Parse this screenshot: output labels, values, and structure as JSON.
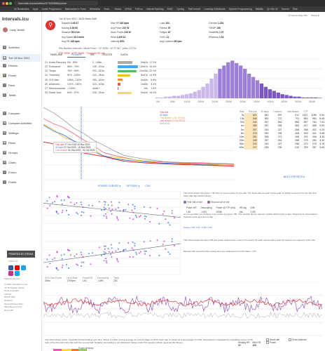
{
  "browser": {
    "url": "intervals.icu/activities/i17000896/power",
    "bookmarks": [
      "All Bookmarks",
      "Apps",
      "Guitar Progression",
      "Bikehackerz's Track",
      "Wheeloha",
      "Yeah...",
      "Strava",
      "VEMA",
      "Full Ice",
      "Internet Banking",
      "AMIC",
      "Cycling",
      "TeleConvert",
      "Learning Solidworks",
      "Speedo Programming",
      "Millibits",
      "Qu Wiz #2",
      "Garmin",
      "Ride"
    ]
  },
  "sidebar": {
    "logo": "Intervals.icu",
    "user": "Lady Jeckel",
    "items": [
      {
        "label": "Activities",
        "y": 48
      },
      {
        "label": "Tue 16 Nov 2021",
        "y": 60,
        "active": true
      },
      {
        "label": "Fitness",
        "y": 74
      },
      {
        "label": "Power",
        "y": 88
      },
      {
        "label": "Pace",
        "y": 102
      },
      {
        "label": "Totals",
        "y": 116
      },
      {
        "label": "Compare",
        "y": 142
      },
      {
        "label": "Compare Activities",
        "y": 156
      },
      {
        "label": "Settings",
        "y": 170
      },
      {
        "label": "Plans",
        "y": 184
      },
      {
        "label": "Groups",
        "y": 198
      },
      {
        "label": "Chats",
        "y": 212
      },
      {
        "label": "Forum",
        "y": 226
      },
      {
        "label": "Profile",
        "y": 240
      }
    ],
    "strava": "POWERED BY STRAVA",
    "social_label": "Follow Us",
    "footer": [
      "© 2024 Intervals.icu Ltd",
      "71-75 Shelton Street",
      "Covent Garden",
      "London",
      "WC2H 9JQ",
      "England",
      "Terms Privacy Help",
      "Ideas  Bugs  Forum",
      "Docs  API"
    ],
    "follow": "FastFitness.Tips"
  },
  "header": {
    "date": "Tue 16 Nov 2021 · 18:00 Mixed Zwift",
    "stats": [
      [
        "Elapsed",
        "1:40:27"
      ],
      [
        "Moving",
        "1:39:50"
      ],
      [
        "Distance",
        "50.9 km"
      ],
      [
        "Avg Speed",
        "30.2 km/h"
      ],
      [
        "Avg HR",
        "148 bpm"
      ],
      [
        "Max HR",
        "182 bpm"
      ],
      [
        "Avg Power",
        "227 W"
      ],
      [
        "Norm Power",
        "244 W"
      ],
      [
        "Work",
        "1,325 kJ"
      ],
      [
        "Intensity",
        "80%"
      ],
      [
        "Load",
        "104"
      ],
      [
        "Fitness",
        "76"
      ],
      [
        "Fatigue",
        "87"
      ],
      [
        "Form",
        "-11"
      ],
      [
        "Avg Cadence",
        "85 rpm"
      ],
      [
        "Calories",
        "1,210"
      ],
      [
        "TRIMP",
        "155"
      ],
      [
        "Variability",
        "1.07"
      ],
      [
        "Efficiency",
        "1.64"
      ]
    ],
    "chips": [
      "Ⓡ Garmin Edge 810",
      "Strava ★"
    ],
    "power_model": "Eliw Banister Intervals Critical Power · CP 250W · W' 22.3kJ · pMax 1077W",
    "ftp_line": "FTP 269W · eFTP 264W · Threshold HR 168"
  },
  "tabs": [
    "TIMELINE",
    "POWER",
    "HR",
    "ROUTE",
    "DATA"
  ],
  "zones": [
    [
      "Z1",
      "Active Recovery",
      "0% - 55%",
      "0 - 148w",
      "9m42s",
      "17.2%",
      "#aaa"
    ],
    [
      "Z2",
      "Endurance",
      "56% - 75%",
      "149 - 201w",
      "13m47s",
      "24.5%",
      "#3fa9f5"
    ],
    [
      "Z3",
      "Tempo",
      "76% - 90%",
      "202 - 242w",
      "12m24s",
      "22.1%",
      "#5bb85b"
    ],
    [
      "Z4",
      "Threshold",
      "91% - 105%",
      "243 - 282w",
      "8m21s",
      "14.9%",
      "#f2c40f"
    ],
    [
      "Z5",
      "VO2 Max",
      "106% - 120%",
      "283 - 322w",
      "3m15s",
      "5.8%",
      "#f08a24"
    ],
    [
      "Z6",
      "Anaerobic",
      "121% - 150%",
      "323 - 403w",
      "1m45s",
      "3.1%",
      "#e05a4f"
    ],
    [
      "Z7",
      "Neuromuscular",
      "> 150%",
      "404w +",
      "34s",
      "1.0%",
      "#9b59b6"
    ],
    [
      "SS",
      "Sweet Spot",
      "84% - 97%",
      "226 - 261w",
      "9m12s",
      "16.4%",
      "#f6d860"
    ]
  ],
  "hist_axis": [
    "0W",
    "50W",
    "100W",
    "150W",
    "200W",
    "250W",
    "300W",
    "350W",
    "400W",
    "450W",
    "500W",
    "550W",
    "600W"
  ],
  "power_curve_table": {
    "headers": [
      "Time",
      "This ride",
      "42 days",
      "1 season",
      "Last season",
      "FTP"
    ],
    "rows": [
      [
        "5s",
        "621",
        "644",
        "897",
        "912",
        "1007",
        "1186",
        "9.54"
      ],
      [
        "15s",
        "548",
        "560",
        "737",
        "701",
        "860",
        "984",
        "8.48"
      ],
      [
        "30s",
        "440",
        "467",
        "562",
        "580",
        "657",
        "764",
        "7.03"
      ],
      [
        "1m",
        "383",
        "397",
        "394",
        "384",
        "447",
        "568",
        "5.09"
      ],
      [
        "2m",
        "307",
        "318",
        "327",
        "358",
        "368",
        "402",
        "4.29"
      ],
      [
        "5m",
        "278",
        "290",
        "294",
        "308",
        "309",
        "341",
        "3.58"
      ],
      [
        "10m",
        "261",
        "268",
        "273",
        "265",
        "292",
        "296",
        "3.36"
      ],
      [
        "20m",
        "248",
        "257",
        "261",
        "268",
        "275",
        "284",
        "3.30"
      ],
      [
        "30m",
        "240",
        "245",
        "247",
        "258",
        "270",
        "278",
        "3.19"
      ],
      [
        "60m",
        "227",
        "228",
        "230",
        "244",
        "259",
        "267",
        "3.06"
      ]
    ]
  },
  "pc_legend": [
    "This ride",
    "42 days",
    "This season (Jun 19 Nov)",
    "Last season (1 Oct 2020)",
    "Best of all"
  ],
  "pc_tip": [
    [
      "This ride",
      "27 Oct 2025",
      "16 Nov 2024"
    ],
    [
      "42 days",
      "27 Oct 2024 - 16 Nov 2024"
    ],
    [
      "Last season",
      "01 Nov 2023 - 31 Oct 2024"
    ]
  ],
  "pc_links": {
    "curves": "POWER CURVES ▾",
    "options": "OPTIONS ▾",
    "csv": "CSV"
  },
  "best_efforts": "BEST EFFORTS ▾",
  "scatter": {
    "title": "This chart shows the power / HR ratio for each minute of your ride. The heart rate for each power point is shifted to account for the fact that heart rate lags behind power.",
    "legend": [
      "First half of ride",
      "Second half of ride"
    ],
    "stats_headers": [
      "Power HR",
      "Decoupling",
      "Power @ FTP (est)",
      "HR lag",
      "Drift"
    ],
    "stats_values": [
      "1.45",
      "-1.8%",
      "233W",
      "44s",
      "2.4%"
    ],
    "note": "As you get fitter you produce more power at a given HR. Your aerobic fitness reduces cardiac drift but this is also influenced by temperature, hydration level and time of day.",
    "power_hr_text": "Power / HR: 1.61 / 1.64 / 1.62",
    "csv": "CSV",
    "desc2": "This chart shows the same HR and power data but the x-axis is the power for each minute with a point for each 1-min segment of the ride.",
    "footnote": "Minutes with less than 20s moving time are excluded from both charts."
  },
  "bottom": {
    "stats": [
      [
        "AVG Hour Power",
        "244w"
      ],
      [
        "Heart Rate",
        "175 bpm"
      ],
      [
        "Power/HR",
        "1.61"
      ],
      [
        "Decoupling",
        "-1.8%"
      ],
      [
        "Temp",
        "22C"
      ]
    ],
    "paragraph": "This chart shows power, heartrate and decoupling over time. Power is a 60s moving average as a percentage of eFTP, heart rate is shown as a percentage of LTHR. Decoupling is calculated by comparing power to HR ratio of the first half of the ride with the second half. Negative decoupling is not displayed. Values under 5% usually indicate good aerobic fitness.",
    "options": [
      "Heart rate",
      "Power",
      "Show cadence"
    ],
    "power_hr_box": [
      "Heating HR",
      "Max HR",
      "92",
      "165"
    ],
    "heat_title": "Power Bestiary"
  }
}
